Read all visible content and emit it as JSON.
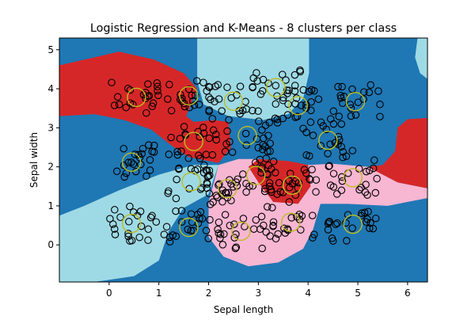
{
  "chart_data": {
    "type": "scatter",
    "title": "Logistic Regression and K-Means - 8 clusters per class",
    "xlabel": "Sepal length",
    "ylabel": "Sepal width",
    "xlim": [
      -1.0,
      6.4
    ],
    "ylim": [
      -0.95,
      5.3
    ],
    "xticks": [
      0,
      1,
      2,
      3,
      4,
      5,
      6
    ],
    "yticks": [
      0,
      1,
      2,
      3,
      4,
      5
    ],
    "grid": false,
    "legend": "none",
    "colors": {
      "red": "#d62728",
      "blue": "#1f77b4",
      "light_blue": "#9edae5",
      "pink": "#f7b6d2",
      "center_edge": "#bcbd22",
      "point_edge": "#000000"
    },
    "centers": [
      {
        "x": 0.55,
        "y": 3.78
      },
      {
        "x": 1.6,
        "y": 3.82
      },
      {
        "x": 2.5,
        "y": 3.68
      },
      {
        "x": 3.35,
        "y": 4.03
      },
      {
        "x": 3.8,
        "y": 3.57
      },
      {
        "x": 4.95,
        "y": 3.67
      },
      {
        "x": 0.45,
        "y": 2.12
      },
      {
        "x": 1.7,
        "y": 2.65
      },
      {
        "x": 2.78,
        "y": 2.8
      },
      {
        "x": 4.4,
        "y": 2.68
      },
      {
        "x": 1.65,
        "y": 1.62
      },
      {
        "x": 2.38,
        "y": 1.44
      },
      {
        "x": 2.95,
        "y": 1.78
      },
      {
        "x": 3.68,
        "y": 1.53
      },
      {
        "x": 4.9,
        "y": 1.72
      },
      {
        "x": 0.45,
        "y": 0.55
      },
      {
        "x": 1.6,
        "y": 0.45
      },
      {
        "x": 2.65,
        "y": 0.35
      },
      {
        "x": 3.65,
        "y": 0.58
      },
      {
        "x": 4.9,
        "y": 0.53
      }
    ],
    "regions": [
      {
        "color": "light_blue",
        "points": [
          [
            1.77,
            5.3
          ],
          [
            4.02,
            5.3
          ],
          [
            4.02,
            4.4
          ],
          [
            3.9,
            3.75
          ],
          [
            3.6,
            3.35
          ],
          [
            3.1,
            3.2
          ],
          [
            2.4,
            3.3
          ],
          [
            1.9,
            3.6
          ],
          [
            1.77,
            4.2
          ]
        ]
      },
      {
        "color": "red",
        "points": [
          [
            -1.0,
            4.6
          ],
          [
            0.2,
            4.95
          ],
          [
            0.9,
            4.75
          ],
          [
            1.5,
            4.4
          ],
          [
            1.77,
            4.0
          ],
          [
            1.55,
            3.3
          ],
          [
            1.7,
            3.15
          ],
          [
            2.1,
            3.2
          ],
          [
            2.4,
            3.15
          ],
          [
            2.45,
            2.5
          ],
          [
            2.2,
            2.1
          ],
          [
            1.6,
            2.25
          ],
          [
            1.25,
            2.55
          ],
          [
            0.85,
            2.95
          ],
          [
            0.3,
            3.2
          ],
          [
            -0.3,
            3.35
          ],
          [
            -1.0,
            3.3
          ]
        ]
      },
      {
        "color": "light_blue",
        "points": [
          [
            -1.0,
            0.75
          ],
          [
            -0.5,
            1.0
          ],
          [
            0.2,
            1.4
          ],
          [
            1.0,
            1.8
          ],
          [
            1.7,
            2.05
          ],
          [
            2.2,
            2.05
          ],
          [
            2.0,
            1.3
          ],
          [
            1.5,
            0.95
          ],
          [
            1.2,
            0.35
          ],
          [
            1.0,
            -0.4
          ],
          [
            0.5,
            -0.8
          ],
          [
            -0.3,
            -0.95
          ],
          [
            -1.0,
            -0.95
          ]
        ]
      },
      {
        "color": "red",
        "points": [
          [
            3.0,
            2.2
          ],
          [
            3.6,
            2.15
          ],
          [
            4.0,
            2.05
          ],
          [
            4.05,
            1.5
          ],
          [
            3.8,
            1.05
          ],
          [
            3.3,
            1.1
          ],
          [
            3.0,
            1.6
          ],
          [
            2.8,
            2.0
          ]
        ]
      },
      {
        "color": "pink",
        "points": [
          [
            2.2,
            2.05
          ],
          [
            2.6,
            2.2
          ],
          [
            3.0,
            2.2
          ],
          [
            2.8,
            2.0
          ],
          [
            3.0,
            1.6
          ],
          [
            3.3,
            1.1
          ],
          [
            3.8,
            1.05
          ],
          [
            4.05,
            1.5
          ],
          [
            4.0,
            2.05
          ],
          [
            4.5,
            2.08
          ],
          [
            5.2,
            2.0
          ],
          [
            5.8,
            1.6
          ],
          [
            6.4,
            1.45
          ],
          [
            6.4,
            1.2
          ],
          [
            5.6,
            1.0
          ],
          [
            4.8,
            1.05
          ],
          [
            4.25,
            1.05
          ],
          [
            4.1,
            0.4
          ],
          [
            3.9,
            -0.1
          ],
          [
            3.4,
            -0.45
          ],
          [
            2.8,
            -0.55
          ],
          [
            2.3,
            -0.3
          ],
          [
            2.0,
            0.2
          ],
          [
            2.0,
            1.1
          ]
        ]
      },
      {
        "color": "red",
        "points": [
          [
            5.2,
            2.0
          ],
          [
            5.8,
            1.6
          ],
          [
            6.4,
            1.45
          ],
          [
            6.4,
            3.25
          ],
          [
            6.0,
            3.22
          ],
          [
            5.8,
            3.0
          ],
          [
            5.75,
            2.4
          ],
          [
            5.5,
            2.05
          ]
        ]
      },
      {
        "color": "light_blue",
        "points": [
          [
            6.4,
            5.3
          ],
          [
            6.2,
            5.3
          ],
          [
            6.15,
            4.8
          ],
          [
            6.25,
            4.4
          ],
          [
            6.4,
            4.25
          ]
        ]
      }
    ]
  }
}
